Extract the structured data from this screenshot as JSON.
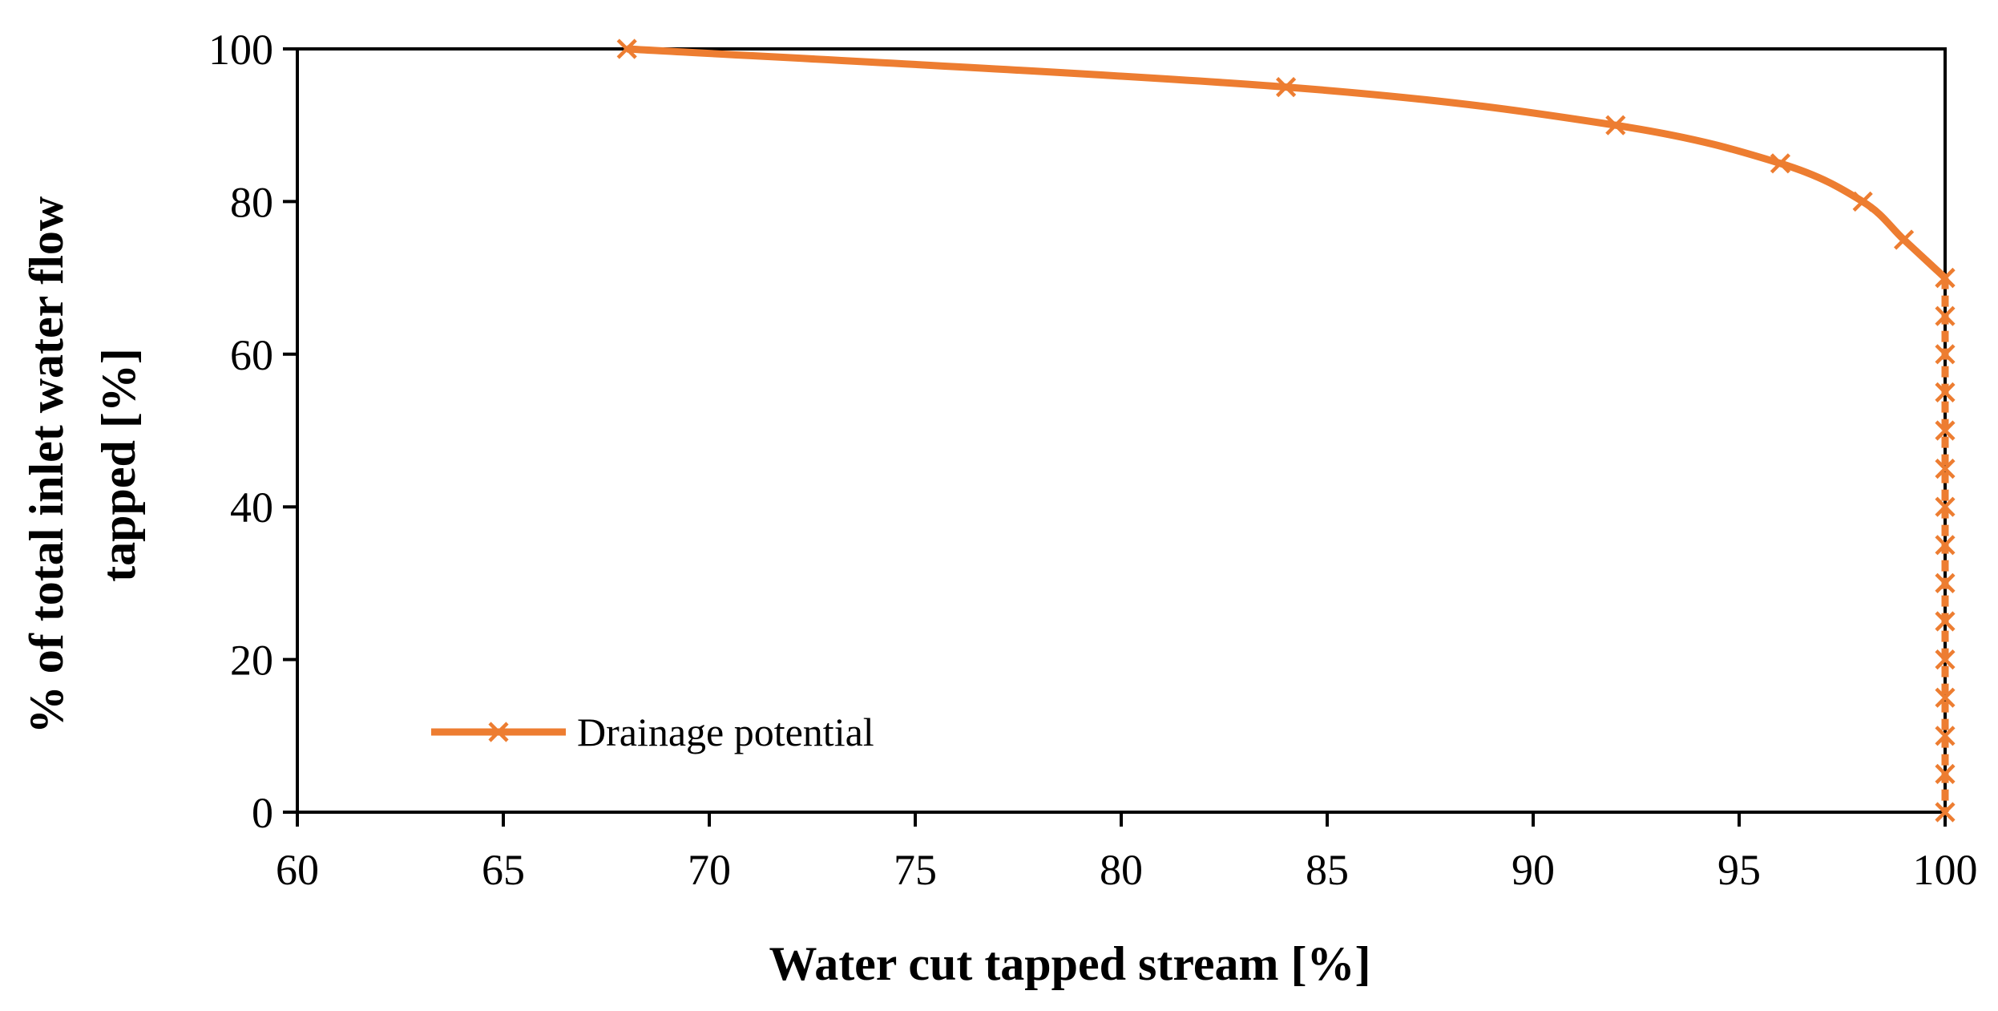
{
  "chart_data": {
    "type": "line",
    "title": "",
    "xlabel": "Water cut tapped stream [%]",
    "ylabel_lines": [
      "% of total inlet water flow",
      "tapped [%]"
    ],
    "xlim": [
      60,
      100
    ],
    "ylim": [
      0,
      100
    ],
    "x_ticks": [
      60,
      65,
      70,
      75,
      80,
      85,
      90,
      95,
      100
    ],
    "y_ticks": [
      0,
      20,
      40,
      60,
      80,
      100
    ],
    "x_tick_labels": [
      "60",
      "65",
      "70",
      "75",
      "80",
      "85",
      "90",
      "95",
      "100"
    ],
    "y_tick_labels": [
      "0",
      "20",
      "40",
      "60",
      "80",
      "100"
    ],
    "grid": false,
    "legend_position": "bottom-left",
    "series": [
      {
        "name": "Drainage potential",
        "color": "#ED7D31",
        "marker": "x",
        "x": [
          68,
          84,
          92,
          96,
          98,
          99,
          100
        ],
        "y": [
          100,
          95,
          90,
          85,
          80,
          75,
          70
        ],
        "dashed_x": [
          100,
          100,
          100,
          100,
          100,
          100,
          100,
          100,
          100,
          100,
          100,
          100,
          100,
          100,
          100
        ],
        "dashed_y": [
          70,
          65,
          60,
          55,
          50,
          45,
          40,
          35,
          30,
          25,
          20,
          15,
          10,
          5,
          0
        ]
      }
    ]
  }
}
